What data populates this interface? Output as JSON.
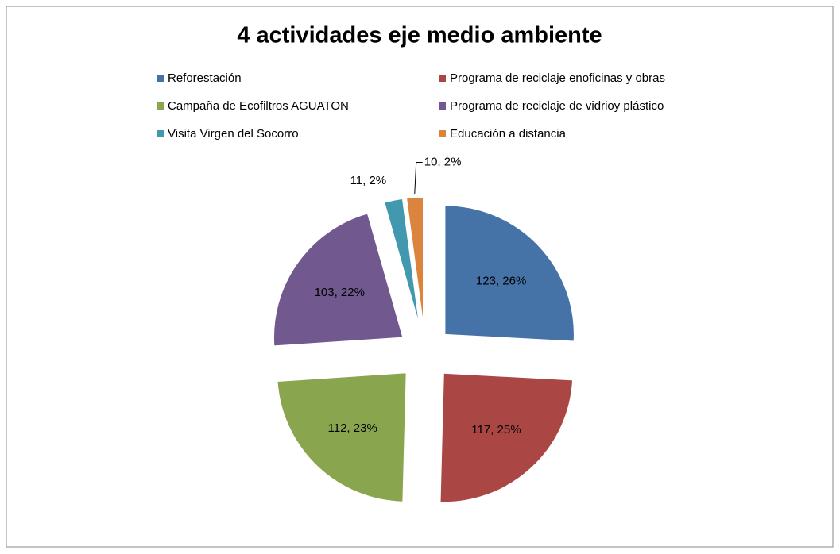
{
  "chart_data": {
    "type": "pie",
    "title": "4 actividades eje medio ambiente",
    "categories": [
      "Reforestación",
      "Programa de reciclaje enoficinas y obras",
      "Campaña de Ecofiltros AGUATON",
      "Programa de reciclaje de vidrioy plástico",
      "Visita Virgen del Socorro",
      "Educación a distancia"
    ],
    "values": [
      123,
      117,
      112,
      103,
      11,
      10
    ],
    "value_labels": [
      "123, 26%",
      "117, 25%",
      "112, 23%",
      "103, 22%",
      "11, 2%",
      "10, 2%"
    ],
    "colors": [
      "#4572a7",
      "#aa4643",
      "#89a54e",
      "#71588f",
      "#4198af",
      "#db843d"
    ],
    "legend": "top"
  }
}
